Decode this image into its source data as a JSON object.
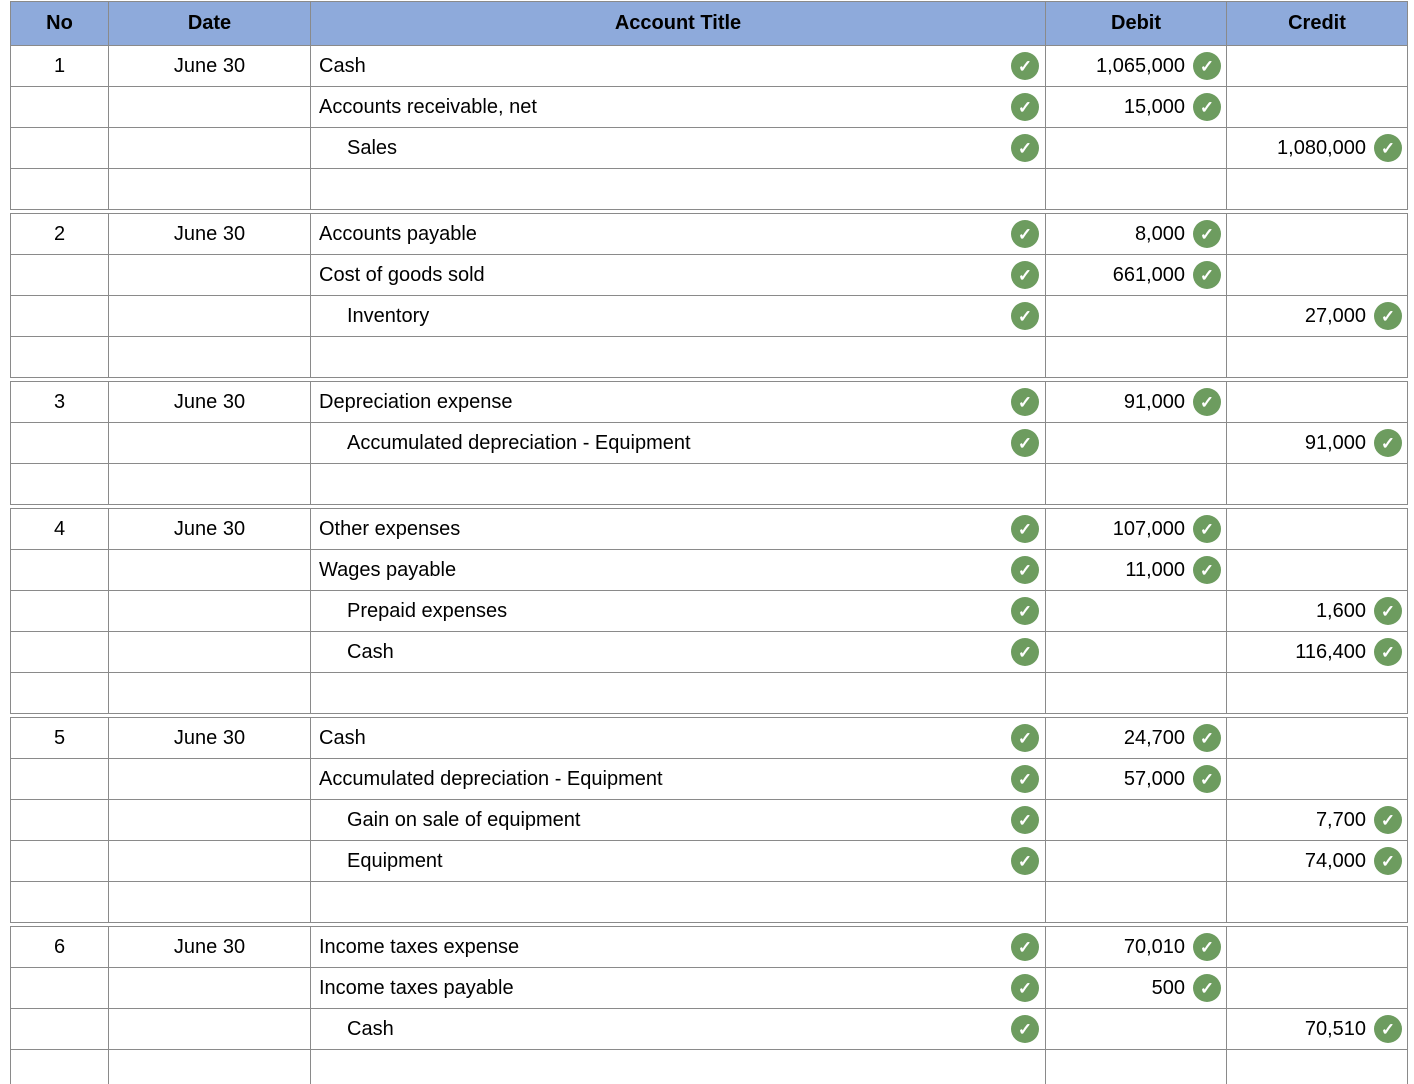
{
  "icons": {
    "check": "✓"
  },
  "colors": {
    "header_bg": "#8EAADB",
    "filled_cell_bg": "#F4F8EF",
    "check_green": "#6D9C5F",
    "grid_border": "#8A8A8A"
  },
  "table": {
    "columns": [
      "No",
      "Date",
      "Account Title",
      "Debit",
      "Credit"
    ],
    "entries": [
      {
        "no": "1",
        "date": "June 30",
        "lines": [
          {
            "account": "Cash",
            "debit": "1,065,000",
            "credit": ""
          },
          {
            "account": "Accounts receivable, net",
            "debit": "15,000",
            "credit": ""
          },
          {
            "account": "Sales",
            "debit": "",
            "credit": "1,080,000"
          }
        ]
      },
      {
        "no": "2",
        "date": "June 30",
        "lines": [
          {
            "account": "Accounts payable",
            "debit": "8,000",
            "credit": ""
          },
          {
            "account": "Cost of goods sold",
            "debit": "661,000",
            "credit": ""
          },
          {
            "account": "Inventory",
            "debit": "",
            "credit": "27,000"
          }
        ]
      },
      {
        "no": "3",
        "date": "June 30",
        "lines": [
          {
            "account": "Depreciation expense",
            "debit": "91,000",
            "credit": ""
          },
          {
            "account": "Accumulated depreciation - Equipment",
            "debit": "",
            "credit": "91,000"
          }
        ]
      },
      {
        "no": "4",
        "date": "June 30",
        "lines": [
          {
            "account": "Other expenses",
            "debit": "107,000",
            "credit": ""
          },
          {
            "account": "Wages payable",
            "debit": "11,000",
            "credit": ""
          },
          {
            "account": "Prepaid expenses",
            "debit": "",
            "credit": "1,600"
          },
          {
            "account": "Cash",
            "debit": "",
            "credit": "116,400"
          }
        ]
      },
      {
        "no": "5",
        "date": "June 30",
        "lines": [
          {
            "account": "Cash",
            "debit": "24,700",
            "credit": ""
          },
          {
            "account": "Accumulated depreciation - Equipment",
            "debit": "57,000",
            "credit": ""
          },
          {
            "account": "Gain on sale of equipment",
            "debit": "",
            "credit": "7,700"
          },
          {
            "account": "Equipment",
            "debit": "",
            "credit": "74,000"
          }
        ]
      },
      {
        "no": "6",
        "date": "June 30",
        "lines": [
          {
            "account": "Income taxes expense",
            "debit": "70,010",
            "credit": ""
          },
          {
            "account": "Income taxes payable",
            "debit": "500",
            "credit": ""
          },
          {
            "account": "Cash",
            "debit": "",
            "credit": "70,510"
          }
        ]
      }
    ]
  }
}
